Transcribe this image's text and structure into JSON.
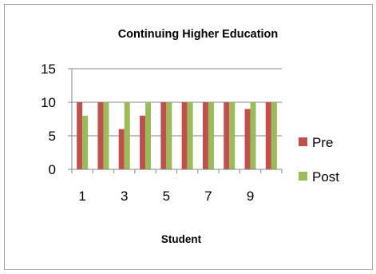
{
  "chart_data": {
    "type": "bar",
    "title": "Continuing Higher Education",
    "xlabel": "Student",
    "ylabel": "",
    "categories": [
      "1",
      "2",
      "3",
      "4",
      "5",
      "6",
      "7",
      "8",
      "9",
      "10"
    ],
    "x_tick_labels": [
      "1",
      "3",
      "5",
      "7",
      "9"
    ],
    "y_ticks": [
      0,
      5,
      10,
      15
    ],
    "ylim": [
      0,
      15
    ],
    "grid": true,
    "legend_position": "right",
    "series": [
      {
        "name": "Pre",
        "color": "#c0504d",
        "values": [
          10,
          10,
          6,
          8,
          10,
          10,
          10,
          10,
          9,
          10
        ]
      },
      {
        "name": "Post",
        "color": "#9bbb59",
        "values": [
          8,
          10,
          10,
          10,
          10,
          10,
          10,
          10,
          10,
          10
        ]
      }
    ]
  }
}
